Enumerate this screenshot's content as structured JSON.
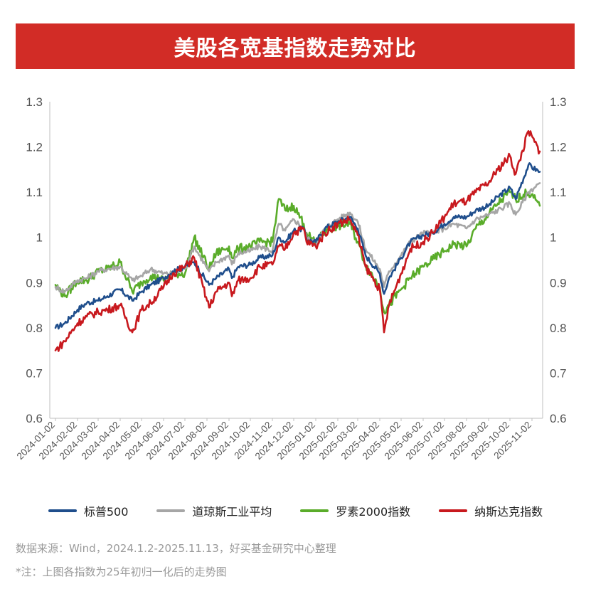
{
  "title": "美股各宽基指数走势对比",
  "source": "数据来源：Wind，2024.1.2-2025.11.13，好买基金研究中心整理",
  "note": "*注：上图各指数为25年初归一化后的走势图",
  "colors": {
    "sp500": "#1f4e8c",
    "dow": "#a6a6a6",
    "russell": "#5aac2a",
    "nasdaq": "#c8191e",
    "axis": "#bfbfbf",
    "tick_text": "#555555"
  },
  "chart_data": {
    "type": "line",
    "title": "美股各宽基指数走势对比",
    "xlabel": "",
    "ylabel": "",
    "ylim": [
      0.6,
      1.3
    ],
    "yticks": [
      "1.3",
      "1.2",
      "1.1",
      "1",
      "0.9",
      "0.8",
      "0.7",
      "0.6"
    ],
    "grid": false,
    "legend": "bottom",
    "x_tick_labels": [
      "2024-01-02",
      "2024-02-02",
      "2024-03-02",
      "2024-04-02",
      "2024-05-02",
      "2024-06-02",
      "2024-07-02",
      "2024-08-02",
      "2024-09-02",
      "2024-10-02",
      "2024-11-02",
      "2024-12-02",
      "2025-01-02",
      "2025-02-02",
      "2025-03-02",
      "2025-04-02",
      "2025-05-02",
      "2025-06-02",
      "2025-07-02",
      "2025-08-02",
      "2025-09-02",
      "2025-10-02",
      "2025-11-02"
    ],
    "x": [
      "2024-01-02",
      "2024-01-15",
      "2024-02-02",
      "2024-02-15",
      "2024-03-02",
      "2024-03-15",
      "2024-04-02",
      "2024-04-19",
      "2024-05-02",
      "2024-05-15",
      "2024-06-02",
      "2024-06-15",
      "2024-07-02",
      "2024-07-15",
      "2024-08-05",
      "2024-08-15",
      "2024-09-02",
      "2024-09-06",
      "2024-09-15",
      "2024-10-02",
      "2024-10-15",
      "2024-11-02",
      "2024-11-11",
      "2024-11-20",
      "2024-12-02",
      "2024-12-16",
      "2024-12-20",
      "2025-01-02",
      "2025-01-15",
      "2025-02-02",
      "2025-02-19",
      "2025-03-02",
      "2025-03-13",
      "2025-04-02",
      "2025-04-08",
      "2025-04-15",
      "2025-05-02",
      "2025-05-15",
      "2025-06-02",
      "2025-06-15",
      "2025-07-02",
      "2025-07-15",
      "2025-08-02",
      "2025-08-15",
      "2025-09-02",
      "2025-09-15",
      "2025-10-02",
      "2025-10-10",
      "2025-10-28",
      "2025-11-13"
    ],
    "series": [
      {
        "name": "标普500",
        "values": [
          0.8,
          0.81,
          0.84,
          0.855,
          0.86,
          0.87,
          0.885,
          0.86,
          0.88,
          0.895,
          0.91,
          0.925,
          0.935,
          0.945,
          0.895,
          0.91,
          0.93,
          0.91,
          0.935,
          0.94,
          0.955,
          0.96,
          1.0,
          0.99,
          1.015,
          1.02,
          0.995,
          0.99,
          1.02,
          1.035,
          1.045,
          1.02,
          0.96,
          0.92,
          0.875,
          0.91,
          0.955,
          0.99,
          1.005,
          1.01,
          1.03,
          1.045,
          1.045,
          1.06,
          1.07,
          1.09,
          1.11,
          1.085,
          1.16,
          1.145
        ]
      },
      {
        "name": "道琼斯工业平均",
        "values": [
          0.89,
          0.88,
          0.905,
          0.91,
          0.925,
          0.93,
          0.935,
          0.905,
          0.915,
          0.93,
          0.92,
          0.92,
          0.93,
          0.98,
          0.925,
          0.945,
          0.96,
          0.94,
          0.965,
          0.97,
          0.98,
          0.97,
          1.03,
          1.015,
          1.04,
          1.02,
          1.0,
          0.985,
          1.02,
          1.04,
          1.055,
          1.035,
          0.975,
          0.93,
          0.89,
          0.925,
          0.96,
          0.99,
          1.01,
          1.01,
          1.02,
          1.03,
          1.02,
          1.04,
          1.05,
          1.06,
          1.075,
          1.05,
          1.1,
          1.12
        ]
      },
      {
        "name": "罗素2000指数",
        "values": [
          0.895,
          0.87,
          0.905,
          0.905,
          0.925,
          0.93,
          0.945,
          0.88,
          0.9,
          0.915,
          0.905,
          0.92,
          0.92,
          1.0,
          0.93,
          0.965,
          0.98,
          0.955,
          0.975,
          0.98,
          0.99,
          0.99,
          1.085,
          1.06,
          1.07,
          1.03,
          1.01,
          0.985,
          1.015,
          1.025,
          1.03,
          0.99,
          0.94,
          0.89,
          0.835,
          0.85,
          0.885,
          0.91,
          0.935,
          0.95,
          0.97,
          0.985,
          0.98,
          1.02,
          1.05,
          1.075,
          1.1,
          1.085,
          1.1,
          1.07
        ]
      },
      {
        "name": "纳斯达克指数",
        "values": [
          0.75,
          0.77,
          0.81,
          0.825,
          0.835,
          0.84,
          0.85,
          0.79,
          0.84,
          0.855,
          0.89,
          0.92,
          0.935,
          0.955,
          0.845,
          0.88,
          0.9,
          0.87,
          0.905,
          0.91,
          0.935,
          0.94,
          0.98,
          0.975,
          1.01,
          1.02,
          0.99,
          0.98,
          1.01,
          1.03,
          1.04,
          1.005,
          0.935,
          0.885,
          0.79,
          0.85,
          0.92,
          0.975,
          0.99,
          1.01,
          1.045,
          1.075,
          1.08,
          1.1,
          1.12,
          1.15,
          1.18,
          1.14,
          1.235,
          1.19
        ]
      }
    ]
  }
}
